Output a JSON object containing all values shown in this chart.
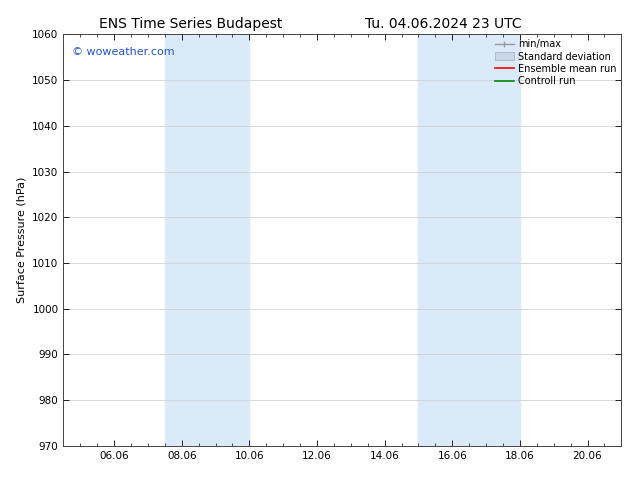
{
  "title_left": "ENS Time Series Budapest",
  "title_right": "Tu. 04.06.2024 23 UTC",
  "ylabel": "Surface Pressure (hPa)",
  "ylim": [
    970,
    1060
  ],
  "yticks": [
    970,
    980,
    990,
    1000,
    1010,
    1020,
    1030,
    1040,
    1050,
    1060
  ],
  "x_min": 0.0,
  "x_max": 16.5,
  "xtick_labels": [
    "06.06",
    "08.06",
    "10.06",
    "12.06",
    "14.06",
    "16.06",
    "18.06",
    "20.06"
  ],
  "xtick_positions": [
    1.5,
    3.5,
    5.5,
    7.5,
    9.5,
    11.5,
    13.5,
    15.5
  ],
  "shaded_bands": [
    {
      "x_start": 3.0,
      "x_end": 5.5
    },
    {
      "x_start": 10.5,
      "x_end": 13.5
    }
  ],
  "watermark": "© woweather.com",
  "watermark_color": "#2255bb",
  "bg_color": "#ffffff",
  "plot_bg_color": "#ffffff",
  "grid_color": "#cccccc",
  "shade_color": "#daeaf8",
  "legend_labels": [
    "min/max",
    "Standard deviation",
    "Ensemble mean run",
    "Controll run"
  ],
  "legend_colors": [
    "#999999",
    "#c8d8e8",
    "#ff0000",
    "#008800"
  ],
  "title_fontsize": 10,
  "label_fontsize": 8,
  "tick_fontsize": 7.5,
  "watermark_fontsize": 8,
  "legend_fontsize": 7
}
